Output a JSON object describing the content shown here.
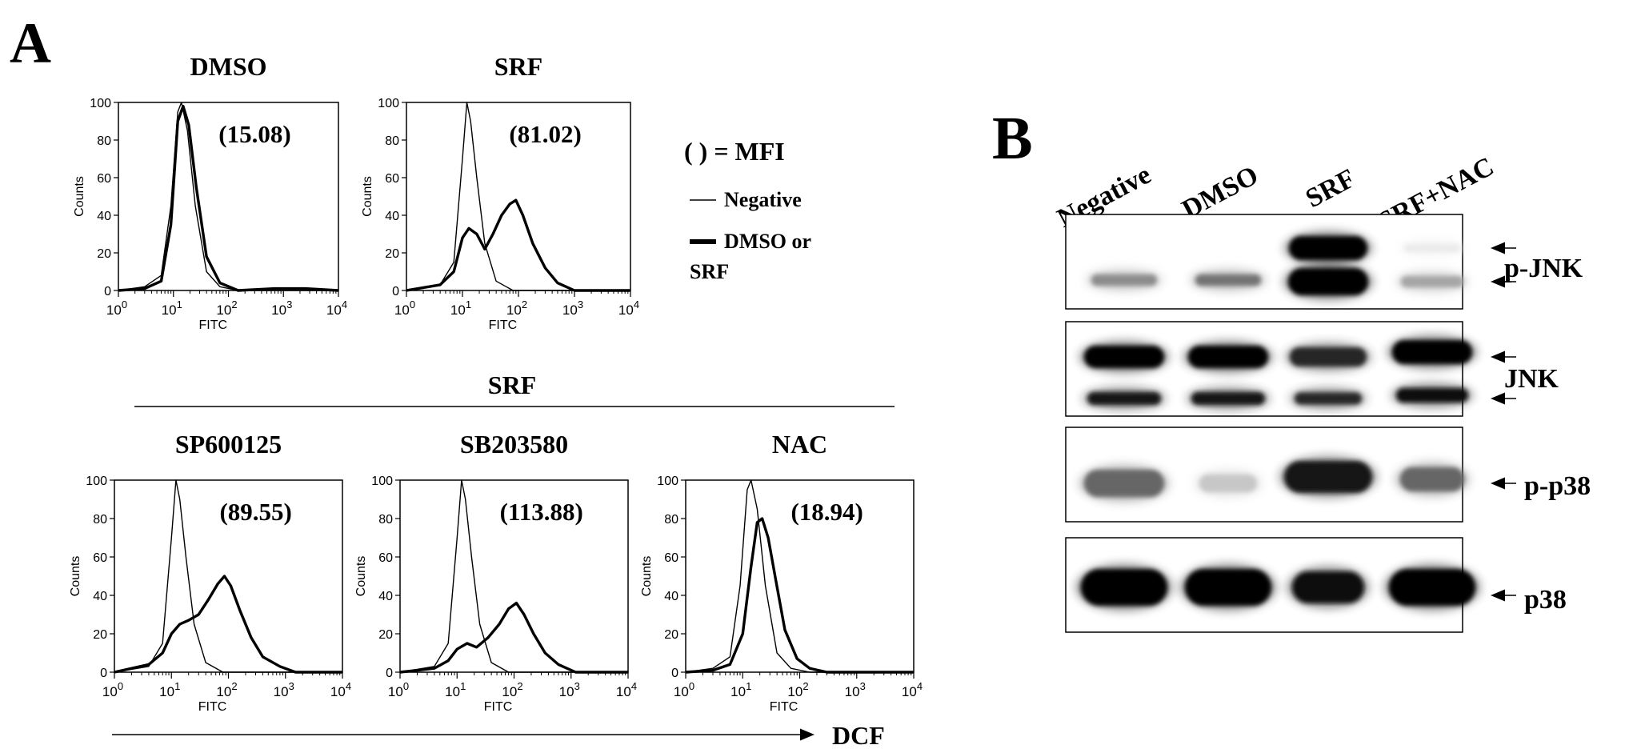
{
  "panel_a": {
    "letter": "A",
    "mfi_key": "( ) = MFI",
    "legend": {
      "thin_label": "Negative",
      "thick_label_line1": "DMSO or",
      "thick_label_line2": "SRF"
    },
    "group_header": "SRF",
    "dcf_label": "DCF",
    "y_axis_label": "Counts",
    "x_axis_label": "FITC",
    "y_ticks": [
      "0",
      "20",
      "40",
      "60",
      "80",
      "100"
    ],
    "x_tick_exponents": [
      "0",
      "1",
      "2",
      "3",
      "4"
    ],
    "x_tick_base": "10"
  },
  "chart_data": [
    {
      "type": "line",
      "title": "DMSO",
      "annotation": "(15.08)",
      "xlabel": "FITC",
      "ylabel": "Counts",
      "xscale": "log",
      "xlim": [
        1,
        10000
      ],
      "ylim": [
        0,
        100
      ],
      "series": [
        {
          "name": "Negative",
          "x": [
            1,
            3,
            6,
            9,
            12,
            14,
            18,
            25,
            40,
            70,
            150,
            1000,
            10000
          ],
          "y": [
            0,
            2,
            8,
            45,
            95,
            100,
            85,
            45,
            10,
            2,
            0,
            0,
            0
          ]
        },
        {
          "name": "DMSO",
          "x": [
            1,
            3,
            6,
            9,
            12,
            15,
            19,
            26,
            40,
            70,
            150,
            700,
            2500,
            10000
          ],
          "y": [
            0,
            1,
            5,
            35,
            90,
            98,
            88,
            55,
            18,
            4,
            0,
            1,
            1,
            0
          ]
        }
      ]
    },
    {
      "type": "line",
      "title": "SRF",
      "annotation": "(81.02)",
      "xlabel": "FITC",
      "ylabel": "Counts",
      "xscale": "log",
      "xlim": [
        1,
        10000
      ],
      "ylim": [
        0,
        100
      ],
      "series": [
        {
          "name": "Negative",
          "x": [
            1,
            4,
            7,
            10,
            12,
            14,
            18,
            25,
            40,
            80,
            10000
          ],
          "y": [
            0,
            3,
            15,
            70,
            100,
            90,
            60,
            25,
            5,
            0,
            0
          ]
        },
        {
          "name": "SRF",
          "x": [
            1,
            4,
            7,
            10,
            13,
            18,
            25,
            35,
            50,
            70,
            90,
            120,
            180,
            300,
            500,
            1000,
            10000
          ],
          "y": [
            0,
            3,
            10,
            28,
            33,
            30,
            22,
            30,
            40,
            46,
            48,
            40,
            25,
            12,
            4,
            0,
            0
          ]
        }
      ]
    },
    {
      "type": "line",
      "title": "SP600125",
      "group": "SRF",
      "annotation": "(89.55)",
      "xlabel": "FITC",
      "ylabel": "Counts",
      "xscale": "log",
      "xlim": [
        1,
        10000
      ],
      "ylim": [
        0,
        100
      ],
      "series": [
        {
          "name": "Negative",
          "x": [
            1,
            4,
            7,
            10,
            12,
            14,
            18,
            25,
            40,
            80,
            10000
          ],
          "y": [
            0,
            3,
            15,
            70,
            100,
            90,
            60,
            25,
            5,
            0,
            0
          ]
        },
        {
          "name": "SP600125",
          "x": [
            1,
            4,
            7,
            10,
            14,
            20,
            30,
            45,
            65,
            85,
            110,
            160,
            250,
            400,
            800,
            1500,
            10000
          ],
          "y": [
            0,
            4,
            10,
            20,
            25,
            27,
            30,
            38,
            46,
            50,
            45,
            32,
            18,
            8,
            3,
            0,
            0
          ]
        }
      ]
    },
    {
      "type": "line",
      "title": "SB203580",
      "group": "SRF",
      "annotation": "(113.88)",
      "xlabel": "FITC",
      "ylabel": "Counts",
      "xscale": "log",
      "xlim": [
        1,
        10000
      ],
      "ylim": [
        0,
        100
      ],
      "series": [
        {
          "name": "Negative",
          "x": [
            1,
            4,
            7,
            10,
            12,
            14,
            18,
            25,
            40,
            80,
            10000
          ],
          "y": [
            0,
            3,
            15,
            70,
            100,
            90,
            60,
            25,
            5,
            0,
            0
          ]
        },
        {
          "name": "SB203580",
          "x": [
            1,
            4,
            7,
            10,
            15,
            22,
            35,
            55,
            80,
            110,
            150,
            220,
            350,
            600,
            1200,
            10000
          ],
          "y": [
            0,
            2,
            6,
            12,
            15,
            13,
            18,
            25,
            33,
            36,
            30,
            20,
            10,
            4,
            0,
            0
          ]
        }
      ]
    },
    {
      "type": "line",
      "title": "NAC",
      "group": "SRF",
      "annotation": "(18.94)",
      "xlabel": "FITC",
      "ylabel": "Counts",
      "xscale": "log",
      "xlim": [
        1,
        10000
      ],
      "ylim": [
        0,
        100
      ],
      "series": [
        {
          "name": "Negative",
          "x": [
            1,
            3,
            6,
            9,
            12,
            14,
            18,
            25,
            40,
            70,
            150,
            10000
          ],
          "y": [
            0,
            2,
            8,
            45,
            95,
            100,
            85,
            45,
            10,
            2,
            0,
            0
          ]
        },
        {
          "name": "NAC",
          "x": [
            1,
            3,
            6,
            10,
            14,
            18,
            22,
            28,
            38,
            55,
            90,
            150,
            300,
            10000
          ],
          "y": [
            0,
            1,
            4,
            20,
            55,
            78,
            80,
            70,
            48,
            22,
            7,
            2,
            0,
            0
          ]
        }
      ]
    }
  ],
  "panel_b": {
    "letter": "B",
    "lanes": [
      "Negative",
      "DMSO",
      "SRF",
      "SRF+NAC"
    ],
    "blots": [
      {
        "label": "p-JNK",
        "arrows": 2
      },
      {
        "label": "JNK",
        "arrows": 2
      },
      {
        "label": "p-p38",
        "arrows": 1
      },
      {
        "label": "p38",
        "arrows": 1
      }
    ]
  }
}
